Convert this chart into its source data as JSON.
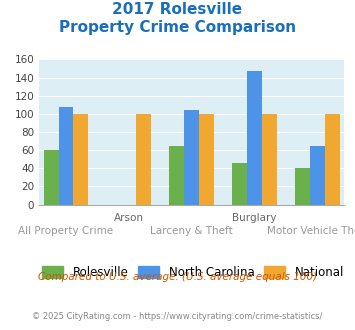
{
  "title_line1": "2017 Rolesville",
  "title_line2": "Property Crime Comparison",
  "title_color": "#1a6fbb",
  "rolesville": [
    60,
    0,
    65,
    46,
    40
  ],
  "north_carolina": [
    108,
    0,
    104,
    147,
    65
  ],
  "national": [
    100,
    100,
    100,
    100,
    100
  ],
  "rolesville_color": "#6ab04c",
  "nc_color": "#4d94e8",
  "national_color": "#f0a830",
  "bg_color": "#ddeef5",
  "ylim": [
    0,
    160
  ],
  "yticks": [
    0,
    20,
    40,
    60,
    80,
    100,
    120,
    140,
    160
  ],
  "legend_labels": [
    "Rolesville",
    "North Carolina",
    "National"
  ],
  "group_labels_top": [
    "",
    "Arson",
    "",
    "Burglary",
    ""
  ],
  "group_labels_bottom": [
    "All Property Crime",
    "",
    "Larceny & Theft",
    "",
    "Motor Vehicle Theft"
  ],
  "footnote1": "Compared to U.S. average. (U.S. average equals 100)",
  "footnote2": "© 2025 CityRating.com - https://www.cityrating.com/crime-statistics/",
  "footnote1_color": "#cc5500",
  "footnote2_color": "#888888"
}
